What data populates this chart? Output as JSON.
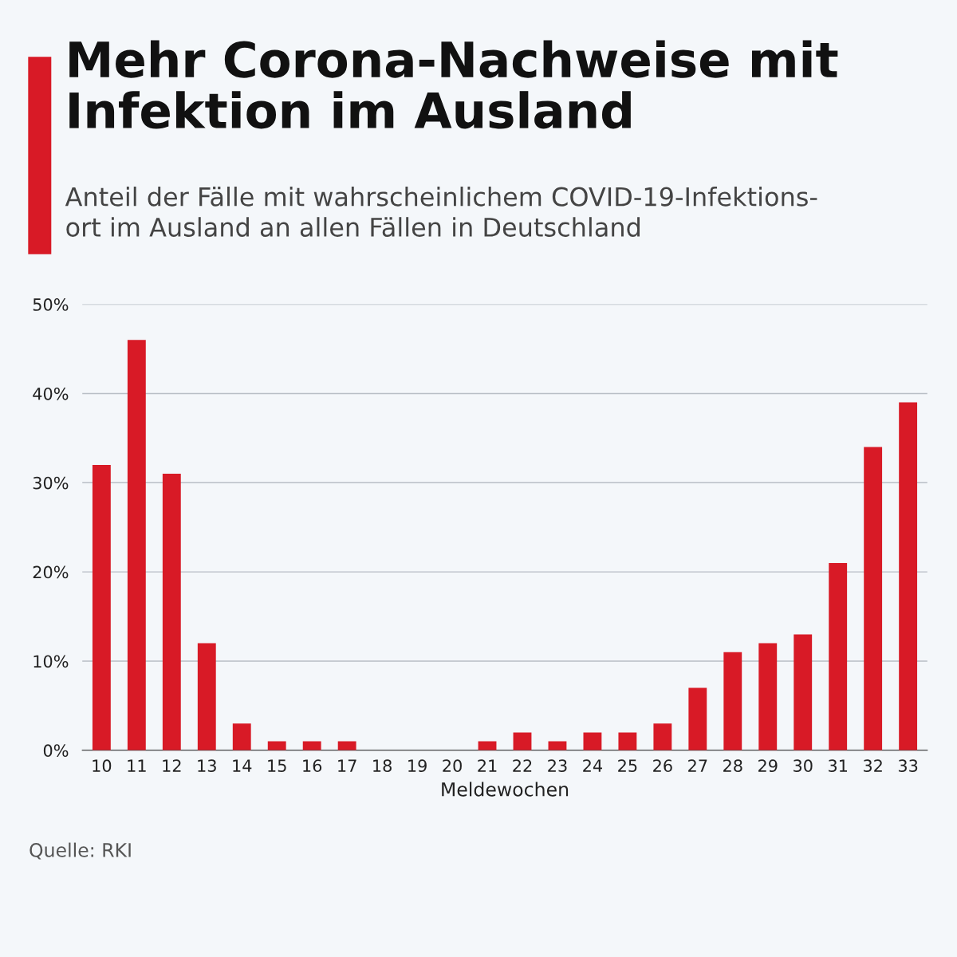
{
  "chart_data": {
    "type": "bar",
    "title": "Mehr Corona-Nachweise mit\nInfektion im Ausland",
    "subtitle": "Anteil der Fälle mit wahrscheinlichem COVID-19-Infektions-\nort im Ausland an allen Fällen in Deutschland",
    "xlabel": "Meldewochen",
    "categories": [
      "10",
      "11",
      "12",
      "13",
      "14",
      "15",
      "16",
      "17",
      "18",
      "19",
      "20",
      "21",
      "22",
      "23",
      "24",
      "25",
      "26",
      "27",
      "28",
      "29",
      "30",
      "31",
      "32",
      "33"
    ],
    "values": [
      32,
      46,
      31,
      12,
      3,
      1,
      1,
      1,
      0,
      0,
      0,
      1,
      2,
      1,
      2,
      2,
      3,
      7,
      11,
      12,
      13,
      21,
      34,
      39
    ],
    "color": "#d81a26",
    "ylim": [
      0,
      50
    ],
    "yticks": [
      {
        "value": 0,
        "label": "0%"
      },
      {
        "value": 10,
        "label": "10%"
      },
      {
        "value": 20,
        "label": "20%"
      },
      {
        "value": 30,
        "label": "30%"
      },
      {
        "value": 40,
        "label": "40%"
      },
      {
        "value": 50,
        "label": "50%"
      }
    ],
    "grid": "y",
    "annotations": [
      "Quelle: RKI"
    ]
  }
}
